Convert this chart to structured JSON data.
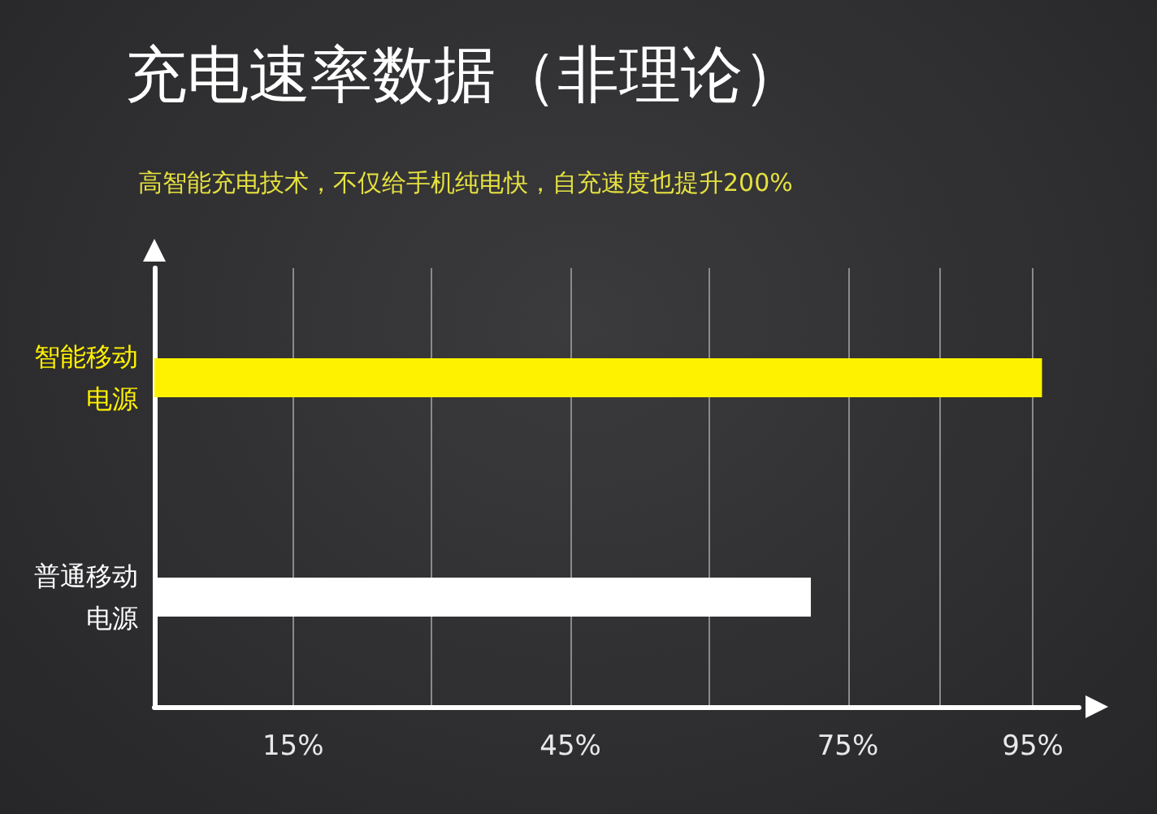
{
  "chart_data": {
    "type": "bar",
    "orientation": "horizontal",
    "title": "充电速率数据（非理论）",
    "subtitle": "高智能充电技术，不仅给手机纯电快，自充速度也提升200%",
    "categories": [
      "智能移动电源",
      "普通移动电源"
    ],
    "values": [
      96,
      71
    ],
    "colors": [
      "#fff200",
      "#ffffff"
    ],
    "xlim": [
      0,
      100
    ],
    "xticks": [
      {
        "value": 15,
        "label": "15%"
      },
      {
        "value": 30,
        "label": null
      },
      {
        "value": 45,
        "label": "45%"
      },
      {
        "value": 60,
        "label": null
      },
      {
        "value": 75,
        "label": "75%"
      },
      {
        "value": 85,
        "label": null
      },
      {
        "value": 95,
        "label": "95%"
      }
    ],
    "grid": "x"
  }
}
